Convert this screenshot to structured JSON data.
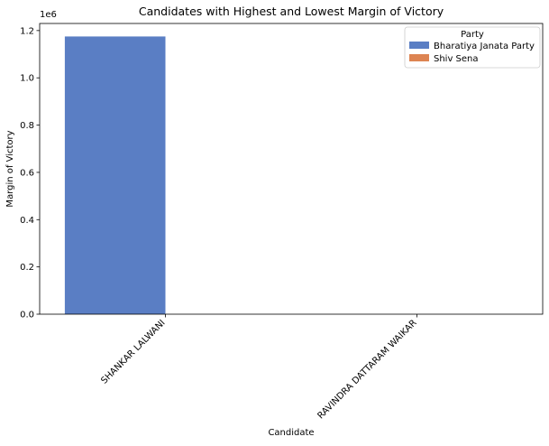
{
  "chart_data": {
    "type": "bar",
    "title": "Candidates with Highest and Lowest Margin of Victory",
    "xlabel": "Candidate",
    "ylabel": "Margin of Victory",
    "y_scale_label": "1e6",
    "categories": [
      "SHANKAR LALWANI",
      "RAVINDRA DATTARAM WAIKAR"
    ],
    "ylim": [
      0,
      1230000
    ],
    "yticks": [
      0,
      200000,
      400000,
      600000,
      800000,
      1000000,
      1200000
    ],
    "ytick_labels": [
      "0.0",
      "0.2",
      "0.4",
      "0.6",
      "0.8",
      "1.0",
      "1.2"
    ],
    "series": [
      {
        "name": "Bharatiya Janata Party",
        "color": "#5a7ec4",
        "values": [
          1175000,
          0
        ]
      },
      {
        "name": "Shiv Sena",
        "color": "#dd8452",
        "values": [
          0,
          48
        ]
      }
    ],
    "legend": {
      "title": "Party",
      "placement": "top-right"
    },
    "grid": false
  }
}
